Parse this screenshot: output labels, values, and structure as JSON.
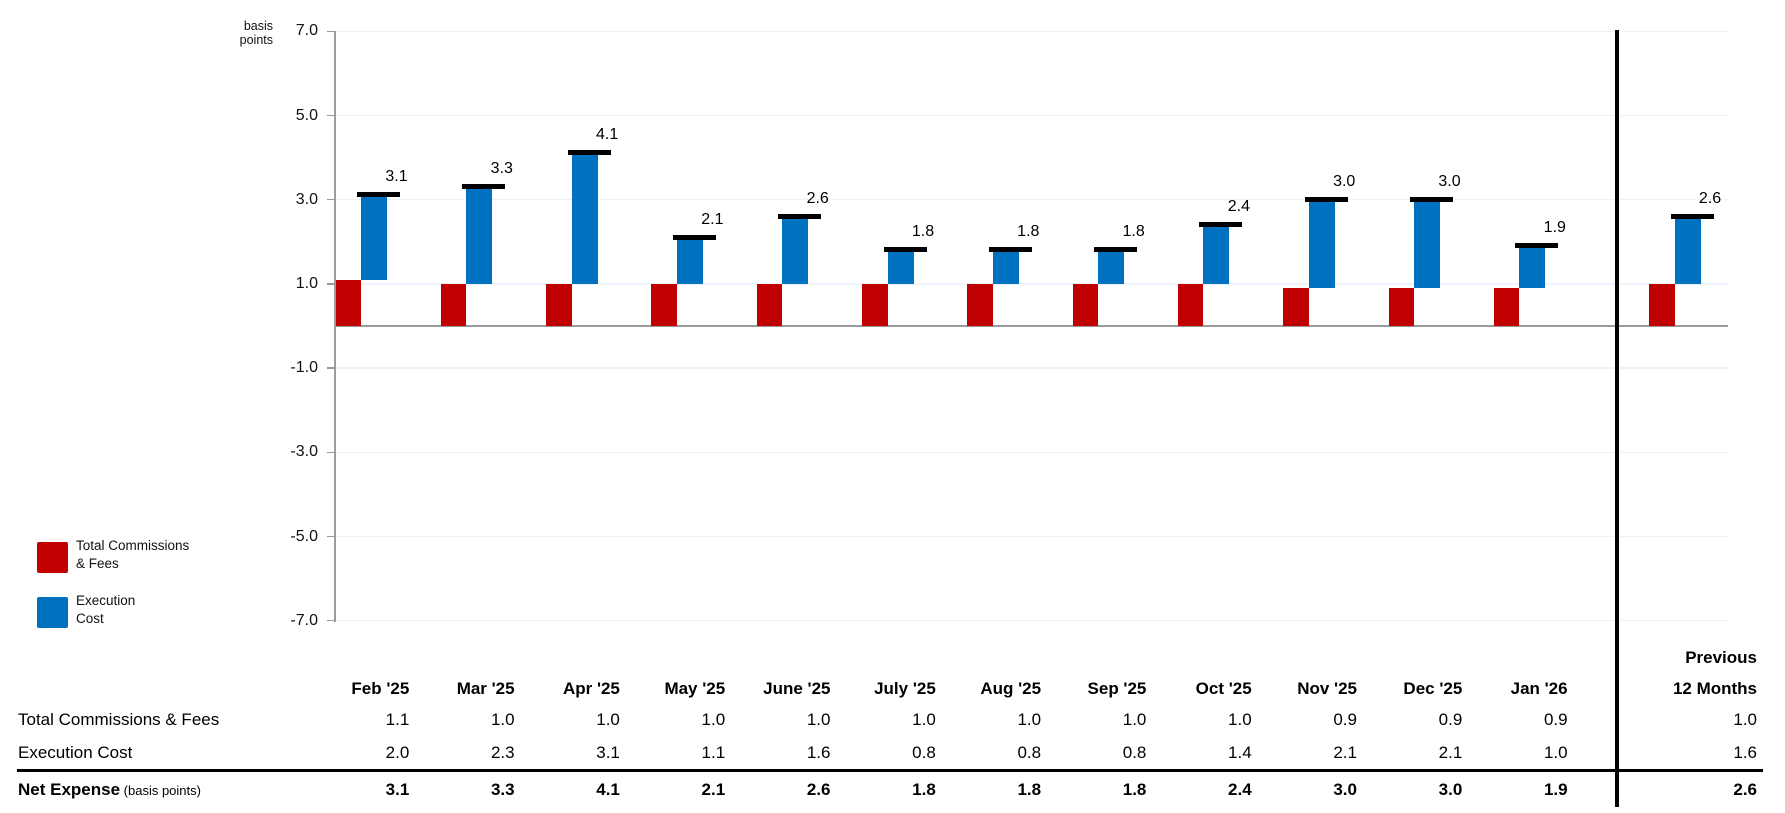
{
  "unit_label": {
    "line1": "basis",
    "line2": "points"
  },
  "legend": {
    "items": [
      {
        "name": "total-commissions-fees",
        "label_line1": "Total Commissions",
        "label_line2": "& Fees",
        "color": "#c00000"
      },
      {
        "name": "execution-cost",
        "label_line1": "Execution",
        "label_line2": "Cost",
        "color": "#0070c0"
      }
    ]
  },
  "chart_data": {
    "type": "bar",
    "subtype": "stacked-column-waterfall-with-total-markers",
    "title": "",
    "ylabel": "basis points",
    "ylim": [
      -7.0,
      7.0
    ],
    "yticks": [
      7.0,
      5.0,
      3.0,
      1.0,
      -1.0,
      -3.0,
      -5.0,
      -7.0
    ],
    "grid": true,
    "legend_position": "left-bottom",
    "separator_after_category": "Jan '26",
    "categories": [
      "Feb '25",
      "Mar '25",
      "Apr '25",
      "May '25",
      "June '25",
      "July '25",
      "Aug '25",
      "Sep '25",
      "Oct '25",
      "Nov '25",
      "Dec '25",
      "Jan '26",
      "Previous 12 Months"
    ],
    "series": [
      {
        "name": "Total Commissions & Fees",
        "color": "#c00000",
        "values": [
          1.1,
          1.0,
          1.0,
          1.0,
          1.0,
          1.0,
          1.0,
          1.0,
          1.0,
          0.9,
          0.9,
          0.9,
          1.0
        ]
      },
      {
        "name": "Execution Cost",
        "color": "#0070c0",
        "values": [
          2.0,
          2.3,
          3.1,
          1.1,
          1.6,
          0.8,
          0.8,
          0.8,
          1.4,
          2.1,
          2.1,
          1.0,
          1.6
        ]
      }
    ],
    "totals": {
      "name": "Net Expense",
      "marker": "black-dash",
      "values": [
        3.1,
        3.3,
        4.1,
        2.1,
        2.6,
        1.8,
        1.8,
        1.8,
        2.4,
        3.0,
        3.0,
        1.9,
        2.6
      ]
    }
  },
  "table": {
    "last_column_header_line1": "Previous",
    "last_column_header_line2": "12 Months",
    "rows": [
      {
        "label": "Total Commissions & Fees",
        "bold": false
      },
      {
        "label": "Execution Cost",
        "bold": false
      },
      {
        "label": "Net Expense",
        "suffix": " (basis points)",
        "bold": true
      }
    ]
  }
}
